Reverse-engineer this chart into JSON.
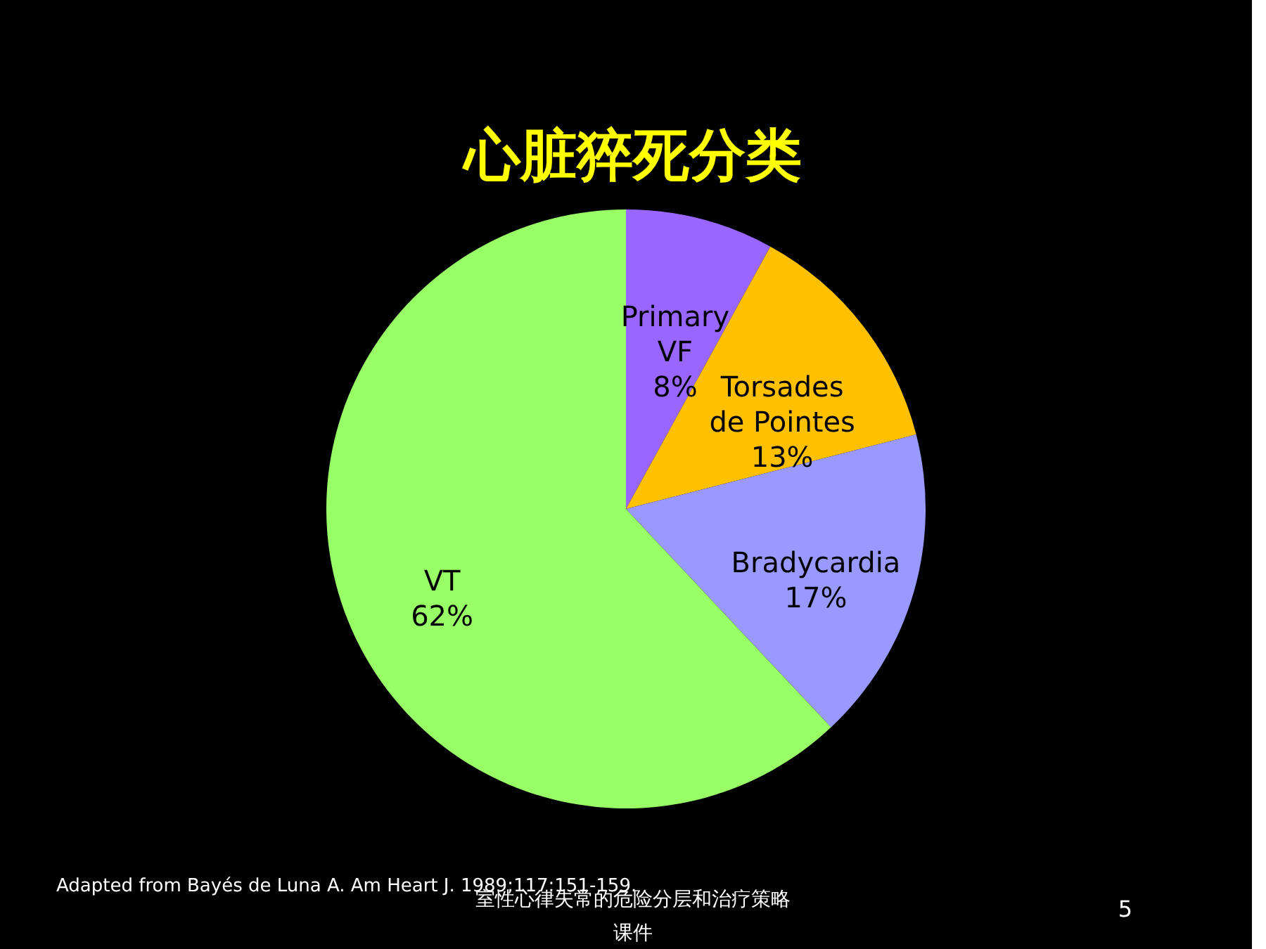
{
  "chart_data": {
    "type": "pie",
    "title": "心脏猝死分类",
    "categories": [
      "Primary\nVF",
      "Torsades\nde Pointes",
      "Bradycardia",
      "VT"
    ],
    "values": [
      8,
      13,
      17,
      62
    ],
    "legend": false,
    "colors": [
      "#9966ff",
      "#ffc000",
      "#9999ff",
      "#99ff66"
    ],
    "value_labels": [
      "8%",
      "13%",
      "17%",
      "62%"
    ],
    "annotations": [
      "Adapted from Bayés de Luna A.  Am Heart J.  1989;117:151-159.",
      "室性心律失常的危险分层和治疗策略课件",
      "5"
    ]
  }
}
